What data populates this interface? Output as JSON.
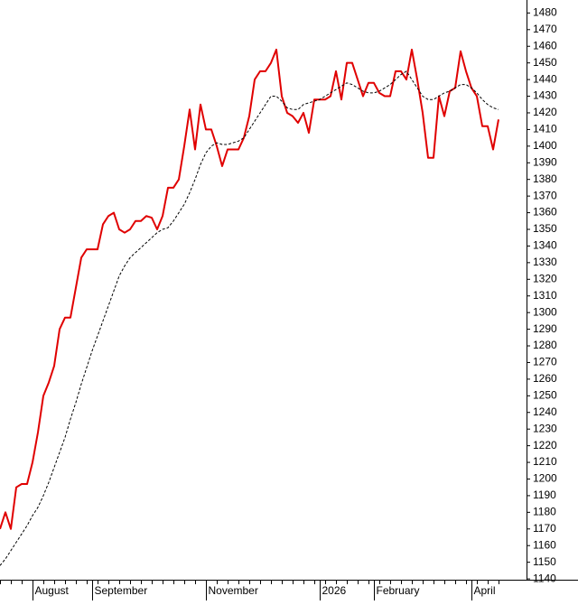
{
  "chart_data": {
    "type": "line",
    "categories": [
      null,
      null,
      null,
      null,
      null,
      null,
      "August",
      null,
      null,
      null,
      null,
      null,
      null,
      null,
      null,
      null,
      null,
      "September",
      null,
      null,
      null,
      null,
      null,
      null,
      null,
      null,
      null,
      null,
      null,
      null,
      null,
      null,
      null,
      null,
      null,
      null,
      null,
      null,
      "November",
      null,
      null,
      null,
      null,
      null,
      null,
      null,
      null,
      null,
      null,
      null,
      null,
      null,
      null,
      null,
      null,
      null,
      null,
      null,
      null,
      "2026",
      null,
      null,
      null,
      null,
      null,
      null,
      null,
      null,
      null,
      "February",
      null,
      null,
      null,
      null,
      null,
      null,
      null,
      null,
      null,
      null,
      null,
      null,
      null,
      null,
      null,
      null,
      null,
      "April",
      null,
      null,
      null,
      null,
      null
    ],
    "series": [
      {
        "color": "#e00000",
        "style": "solid",
        "values": [
          1170,
          1180,
          1170,
          1195,
          1197,
          1197,
          1210,
          1228,
          1250,
          1258,
          1268,
          1290,
          1297,
          1297,
          1315,
          1333,
          1338,
          1338,
          1338,
          1353,
          1358,
          1360,
          1350,
          1348,
          1350,
          1355,
          1355,
          1358,
          1357,
          1350,
          1358,
          1375,
          1375,
          1380,
          1400,
          1422,
          1398,
          1425,
          1410,
          1410,
          1400,
          1388,
          1398,
          1398,
          1398,
          1405,
          1418,
          1440,
          1445,
          1445,
          1450,
          1458,
          1430,
          1420,
          1418,
          1414,
          1420,
          1408,
          1428,
          1428,
          1428,
          1430,
          1445,
          1428,
          1450,
          1450,
          1440,
          1430,
          1438,
          1438,
          1432,
          1430,
          1430,
          1445,
          1445,
          1440,
          1458,
          1440,
          1420,
          1393,
          1393,
          1430,
          1418,
          1433,
          1435,
          1457,
          1445,
          1435,
          1430,
          1412,
          1412,
          1398,
          1416
        ]
      },
      {
        "color": "#000000",
        "style": "dashed",
        "values": [
          1148,
          1152,
          1157,
          1162,
          1167,
          1172,
          1178,
          1183,
          1190,
          1198,
          1207,
          1216,
          1225,
          1236,
          1246,
          1257,
          1267,
          1277,
          1286,
          1295,
          1304,
          1313,
          1322,
          1328,
          1333,
          1336,
          1339,
          1342,
          1345,
          1348,
          1350,
          1351,
          1355,
          1360,
          1365,
          1372,
          1380,
          1389,
          1396,
          1400,
          1402,
          1401,
          1401,
          1402,
          1403,
          1405,
          1410,
          1415,
          1420,
          1425,
          1430,
          1430,
          1427,
          1423,
          1422,
          1422,
          1425,
          1426,
          1427,
          1428,
          1430,
          1432,
          1434,
          1436,
          1438,
          1437,
          1435,
          1433,
          1432,
          1432,
          1433,
          1435,
          1437,
          1440,
          1443,
          1445,
          1440,
          1435,
          1430,
          1428,
          1428,
          1430,
          1432,
          1433,
          1435,
          1437,
          1437,
          1435,
          1432,
          1428,
          1425,
          1423,
          1422
        ]
      }
    ],
    "ylim": [
      1139.5,
      1487.8
    ],
    "yticks": [
      1140,
      1150,
      1160,
      1170,
      1180,
      1190,
      1200,
      1210,
      1220,
      1230,
      1240,
      1250,
      1260,
      1270,
      1280,
      1290,
      1300,
      1310,
      1320,
      1330,
      1340,
      1350,
      1360,
      1370,
      1380,
      1390,
      1400,
      1410,
      1420,
      1430,
      1440,
      1450,
      1460,
      1470,
      1480
    ],
    "yaxis_side": "right"
  }
}
